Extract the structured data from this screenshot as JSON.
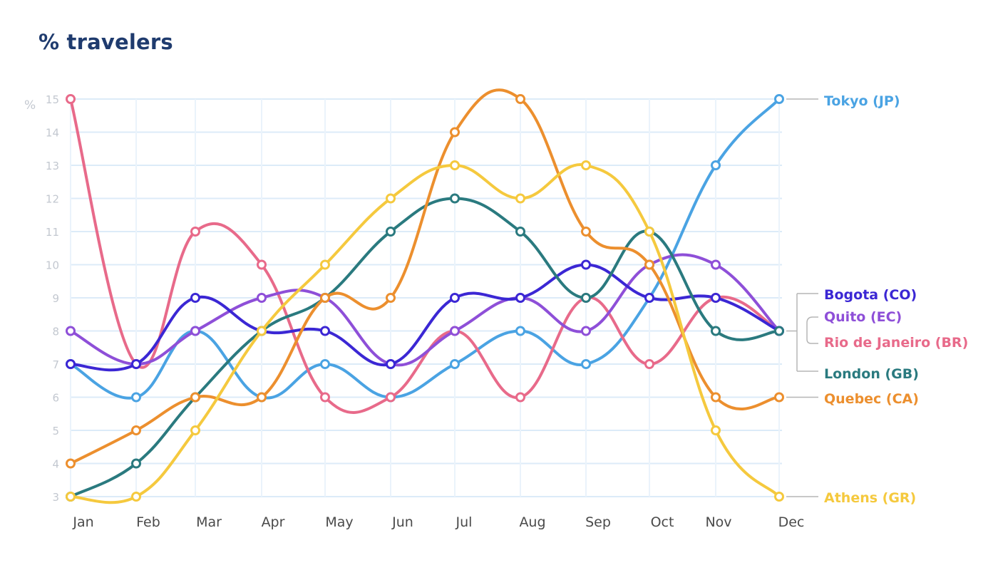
{
  "title": "% travelers",
  "chart_data": {
    "type": "line",
    "title": "% travelers",
    "ylabel": "%",
    "xlabel": "",
    "ylim": [
      3,
      15
    ],
    "yticks": [
      3,
      4,
      5,
      6,
      7,
      8,
      9,
      10,
      11,
      12,
      13,
      14,
      15
    ],
    "categories": [
      "Jan",
      "Feb",
      "Mar",
      "Apr",
      "May",
      "Jun",
      "Jul",
      "Aug",
      "Sep",
      "Oct",
      "Nov",
      "Dec"
    ],
    "grid": true,
    "legend_placement": "right",
    "series": [
      {
        "name": "Tokyo (JP)",
        "color": "#4aa3e3",
        "values": [
          7,
          6,
          8,
          6,
          7,
          6,
          7,
          8,
          7,
          9,
          13,
          15
        ]
      },
      {
        "name": "Bogota (CO)",
        "color": "#3b27d4",
        "values": [
          7,
          7,
          9,
          8,
          8,
          7,
          9,
          9,
          10,
          9,
          9,
          8
        ]
      },
      {
        "name": "Quito (EC)",
        "color": "#8e4fd8",
        "values": [
          8,
          7,
          8,
          9,
          9,
          7,
          8,
          9,
          8,
          10,
          10,
          8
        ]
      },
      {
        "name": "Rio de Janeiro (BR)",
        "color": "#e86a8a",
        "values": [
          15,
          7,
          11,
          10,
          6,
          6,
          8,
          6,
          9,
          7,
          9,
          8
        ]
      },
      {
        "name": "London (GB)",
        "color": "#2a7a7f",
        "values": [
          3,
          4,
          6,
          8,
          9,
          11,
          12,
          11,
          9,
          11,
          8,
          8
        ]
      },
      {
        "name": "Quebec (CA)",
        "color": "#ec8f2e",
        "values": [
          4,
          5,
          6,
          6,
          9,
          9,
          14,
          15,
          11,
          10,
          6,
          6
        ]
      },
      {
        "name": "Athens (GR)",
        "color": "#f5c93e",
        "values": [
          3,
          3,
          5,
          8,
          10,
          12,
          13,
          12,
          13,
          11,
          5,
          3
        ]
      }
    ]
  }
}
